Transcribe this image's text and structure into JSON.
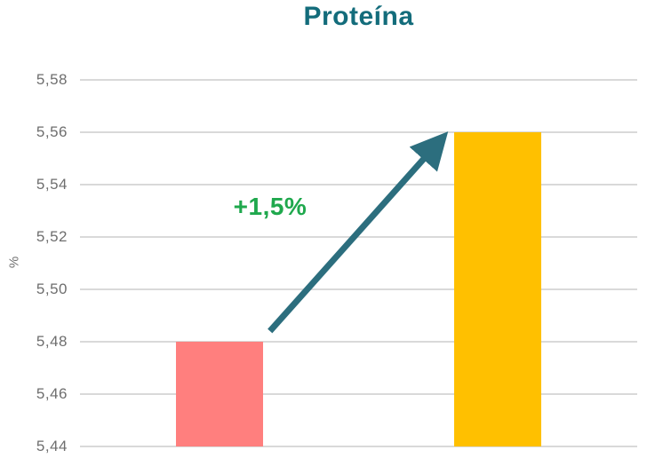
{
  "chart_data": {
    "type": "bar",
    "title": "Proteína",
    "ylabel": "%",
    "ylim": [
      5.44,
      5.58
    ],
    "grid": true,
    "yticks": [
      {
        "label": "5,58",
        "value": 5.58
      },
      {
        "label": "5,56",
        "value": 5.56
      },
      {
        "label": "5,54",
        "value": 5.54
      },
      {
        "label": "5,52",
        "value": 5.52
      },
      {
        "label": "5,50",
        "value": 5.5
      },
      {
        "label": "5,48",
        "value": 5.48
      },
      {
        "label": "5,46",
        "value": 5.46
      },
      {
        "label": "5,44",
        "value": 5.44
      }
    ],
    "values": [
      5.48,
      5.56
    ],
    "bar_colors": [
      "#FF7F7E",
      "#FFC000"
    ],
    "annotation": {
      "text": "+1,5%",
      "color": "#1FA84D"
    },
    "colors": {
      "title": "#136C7B",
      "arrow": "#2C6E7E",
      "tick": "#6E6E6E",
      "grid": "#D9D9D9"
    }
  }
}
